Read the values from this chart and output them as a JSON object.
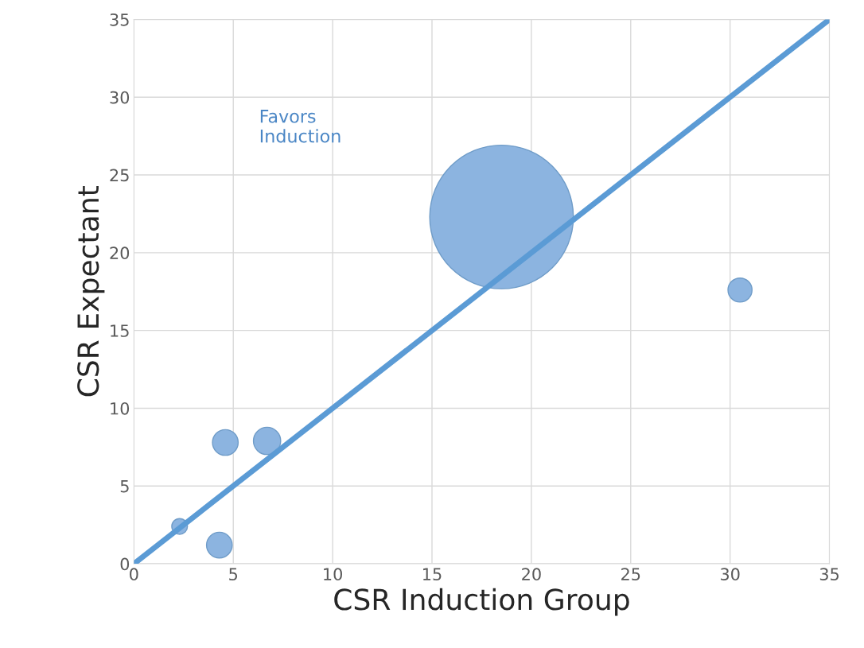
{
  "chart_data": {
    "type": "bubble",
    "xlabel": "CSR Induction Group",
    "ylabel": "CSR Expectant",
    "annotations": [
      "Favors\nInduction"
    ],
    "series": [
      {
        "color": "#8cb4e0",
        "x": [
          2.3,
          4.3,
          4.6,
          6.7,
          18.5,
          30.5
        ],
        "values": [
          2.4,
          1.2,
          7.8,
          7.9,
          22.3,
          17.6
        ],
        "sizes": [
          0.012,
          0.032,
          0.032,
          0.036,
          1,
          0.028
        ]
      },
      {
        "type": "line",
        "color": "#5b9bd5",
        "x": [
          0,
          35
        ],
        "values": [
          0,
          35
        ]
      }
    ],
    "xlim": [
      0,
      35
    ],
    "ylim": [
      0,
      35
    ],
    "xticks": [
      0,
      5,
      10,
      15,
      20,
      25,
      30,
      35
    ],
    "yticks": [
      0,
      5,
      10,
      15,
      20,
      25,
      30,
      35
    ],
    "grid": true
  }
}
